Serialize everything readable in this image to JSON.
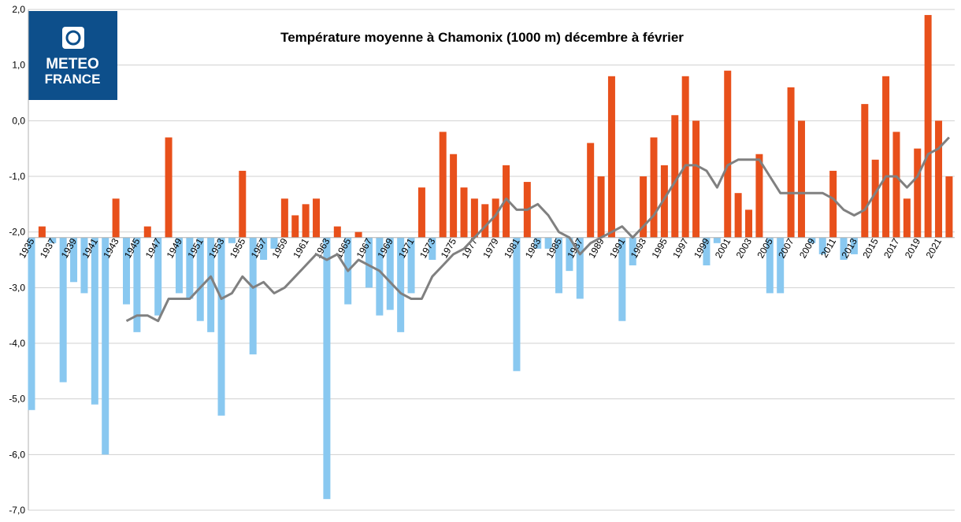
{
  "chart_data": {
    "type": "bar",
    "title": "Température moyenne à Chamonix (1000 m) décembre à février",
    "logo_text": [
      "METEO",
      "FRANCE"
    ],
    "categories": [
      "1935",
      null,
      "1937",
      null,
      "1939",
      null,
      "1941",
      null,
      "1943",
      null,
      "1945",
      null,
      "1947",
      null,
      "1949",
      null,
      "1951",
      null,
      "1953",
      null,
      "1955",
      null,
      "1957",
      null,
      "1959",
      null,
      "1961",
      null,
      "1963",
      null,
      "1965",
      null,
      "1967",
      null,
      "1969",
      null,
      "1971",
      null,
      "1973",
      null,
      "1975",
      null,
      "1977",
      null,
      "1979",
      null,
      "1981",
      null,
      "1983",
      null,
      "1985",
      null,
      "1987",
      null,
      "1989",
      null,
      "1991",
      null,
      "1993",
      null,
      "1995",
      null,
      "1997",
      null,
      "1999",
      null,
      "2001",
      null,
      "2003",
      null,
      "2005",
      null,
      "2007",
      null,
      "2009",
      null,
      "2011",
      null,
      "2013",
      null,
      "2015",
      null,
      "2017",
      null,
      "2019",
      null,
      "2021",
      null
    ],
    "values": [
      -5.2,
      -1.9,
      -2.2,
      -4.7,
      -2.9,
      -3.1,
      -5.1,
      -6.0,
      -1.4,
      -3.3,
      -3.8,
      -1.9,
      -3.5,
      -0.3,
      -3.1,
      -3.2,
      -3.6,
      -3.8,
      -5.3,
      -2.2,
      -0.9,
      -4.2,
      -2.5,
      -2.3,
      -1.4,
      -1.7,
      -1.5,
      -1.4,
      -6.8,
      -1.9,
      -3.3,
      -2.0,
      -3.0,
      -3.5,
      -3.4,
      -3.8,
      -3.1,
      -1.2,
      -2.5,
      -0.2,
      -0.6,
      -1.2,
      -1.4,
      -1.5,
      -1.4,
      -0.8,
      -4.5,
      -1.1,
      -2.3,
      -2.3,
      -3.1,
      -2.7,
      -3.2,
      -0.4,
      -1.0,
      0.8,
      -3.6,
      -2.6,
      -1.0,
      -0.3,
      -0.8,
      0.1,
      0.8,
      0.0,
      -2.6,
      -2.2,
      0.9,
      -1.3,
      -1.6,
      -0.6,
      -3.1,
      -3.1,
      0.6,
      0.0,
      -2.2,
      -2.4,
      -0.9,
      -2.5,
      -2.4,
      0.3,
      -0.7,
      0.8,
      -0.2,
      -1.4,
      -0.5,
      1.9,
      0.0,
      -1.0
    ],
    "colors": {
      "above": "#e8501b",
      "below": "#89c8f0"
    },
    "axis_crossing": -2.1,
    "line": {
      "color": "#808080",
      "values": [
        null,
        null,
        null,
        null,
        null,
        null,
        null,
        null,
        null,
        -3.6,
        -3.5,
        -3.5,
        -3.6,
        -3.2,
        -3.2,
        -3.2,
        -3.0,
        -2.8,
        -3.2,
        -3.1,
        -2.8,
        -3.0,
        -2.9,
        -3.1,
        -3.0,
        -2.8,
        -2.6,
        -2.4,
        -2.5,
        -2.4,
        -2.7,
        -2.5,
        -2.6,
        -2.7,
        -2.9,
        -3.1,
        -3.2,
        -3.2,
        -2.8,
        -2.6,
        -2.4,
        -2.3,
        -2.1,
        -1.9,
        -1.7,
        -1.4,
        -1.6,
        -1.6,
        -1.5,
        -1.7,
        -2.0,
        -2.1,
        -2.4,
        -2.2,
        -2.1,
        -2.0,
        -1.9,
        -2.1,
        -1.9,
        -1.7,
        -1.4,
        -1.1,
        -0.8,
        -0.8,
        -0.9,
        -1.2,
        -0.8,
        -0.7,
        -0.7,
        -0.7,
        -1.0,
        -1.3,
        -1.3,
        -1.3,
        -1.3,
        -1.3,
        -1.4,
        -1.6,
        -1.7,
        -1.6,
        -1.3,
        -1.0,
        -1.0,
        -1.2,
        -1.0,
        -0.6,
        -0.5,
        -0.3
      ]
    },
    "ylim": [
      -7.0,
      2.0
    ],
    "yticks": [
      {
        "value": -7.0,
        "label": "-7,0"
      },
      {
        "value": -6.0,
        "label": "-6,0"
      },
      {
        "value": -5.0,
        "label": "-5,0"
      },
      {
        "value": -4.0,
        "label": "-4,0"
      },
      {
        "value": -3.0,
        "label": "-3,0"
      },
      {
        "value": -2.0,
        "label": "-2,0"
      },
      {
        "value": -1.0,
        "label": "-1,0"
      },
      {
        "value": 0.0,
        "label": "0,0"
      },
      {
        "value": 1.0,
        "label": "1,0"
      },
      {
        "value": 2.0,
        "label": "2,0"
      }
    ],
    "grid": true
  }
}
